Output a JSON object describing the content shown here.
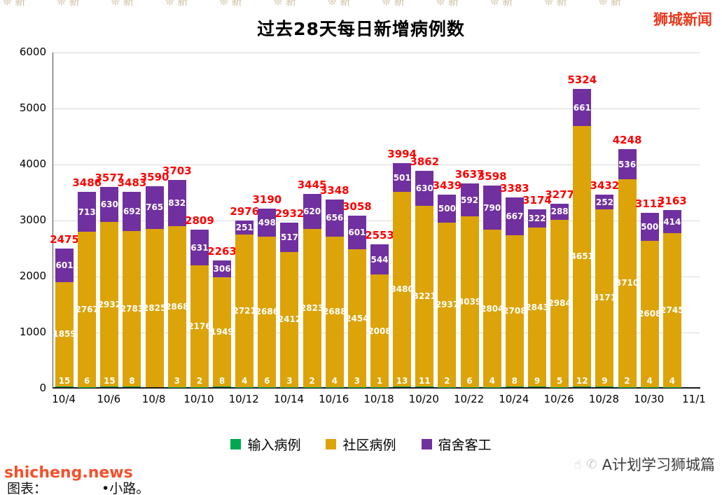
{
  "page": {
    "top_right_watermark": "狮城新闻",
    "top_pattern": "❊ 新",
    "bottom_left_watermark": "shicheng.news",
    "caption_prefix": "图表：",
    "caption_suffix": "•小路。",
    "bottom_right_credit": "A计划学习狮城篇",
    "hand_icon": "☝",
    "phone_icon": "✆"
  },
  "chart_data": {
    "type": "bar",
    "stacked": true,
    "title": "过去28天每日新增病例数",
    "xlabel": "",
    "ylabel": "",
    "ylim": [
      0,
      6000
    ],
    "y_ticks": [
      0,
      1000,
      2000,
      3000,
      4000,
      5000,
      6000
    ],
    "grid": true,
    "legend_position": "bottom",
    "x_tick_labels": [
      "10/4",
      "10/6",
      "10/8",
      "10/10",
      "10/12",
      "10/14",
      "10/16",
      "10/18",
      "10/20",
      "10/22",
      "10/24",
      "10/26",
      "10/28",
      "10/30",
      "11/1"
    ],
    "series": [
      {
        "key": "imported",
        "name": "输入病例",
        "color": "#00A84F"
      },
      {
        "key": "community",
        "name": "社区病例",
        "color": "#DCA408"
      },
      {
        "key": "dorm",
        "name": "宿舍客工",
        "color": "#7030A0"
      }
    ],
    "label_colors": {
      "total": "#FF0000",
      "inside": "#FFFFFF"
    },
    "bars": [
      {
        "imported": 15,
        "community": 1859,
        "dorm": 601,
        "total": 2475
      },
      {
        "imported": 6,
        "community": 2767,
        "dorm": 713,
        "total": 3486
      },
      {
        "imported": 15,
        "community": 2932,
        "dorm": 630,
        "total": 3577
      },
      {
        "imported": 8,
        "community": 2783,
        "dorm": 692,
        "total": 3483
      },
      {
        "imported": 0,
        "community": 2825,
        "dorm": 765,
        "total": 3590
      },
      {
        "imported": 3,
        "community": 2868,
        "dorm": 832,
        "total": 3703
      },
      {
        "imported": 2,
        "community": 2176,
        "dorm": 631,
        "total": 2809
      },
      {
        "imported": 8,
        "community": 1949,
        "dorm": 306,
        "total": 2263
      },
      {
        "imported": 4,
        "community": 2721,
        "dorm": 251,
        "total": 2976
      },
      {
        "imported": 6,
        "community": 2686,
        "dorm": 498,
        "total": 3190
      },
      {
        "imported": 3,
        "community": 2412,
        "dorm": 517,
        "total": 2932
      },
      {
        "imported": 2,
        "community": 2823,
        "dorm": 620,
        "total": 3445
      },
      {
        "imported": 4,
        "community": 2688,
        "dorm": 656,
        "total": 3348
      },
      {
        "imported": 3,
        "community": 2454,
        "dorm": 601,
        "total": 3058
      },
      {
        "imported": 1,
        "community": 2008,
        "dorm": 544,
        "total": 2553
      },
      {
        "imported": 13,
        "community": 3480,
        "dorm": 501,
        "total": 3994
      },
      {
        "imported": 11,
        "community": 3221,
        "dorm": 630,
        "total": 3862
      },
      {
        "imported": 2,
        "community": 2937,
        "dorm": 500,
        "total": 3439
      },
      {
        "imported": 6,
        "community": 3039,
        "dorm": 592,
        "total": 3637
      },
      {
        "imported": 4,
        "community": 2804,
        "dorm": 790,
        "total": 3598
      },
      {
        "imported": 8,
        "community": 2708,
        "dorm": 667,
        "total": 3383
      },
      {
        "imported": 9,
        "community": 2843,
        "dorm": 322,
        "total": 3174
      },
      {
        "imported": 5,
        "community": 2984,
        "dorm": 288,
        "total": 3277
      },
      {
        "imported": 12,
        "community": 4651,
        "dorm": 661,
        "total": 5324
      },
      {
        "imported": 9,
        "community": 3171,
        "dorm": 252,
        "total": 3432
      },
      {
        "imported": 2,
        "community": 3710,
        "dorm": 536,
        "total": 4248
      },
      {
        "imported": 4,
        "community": 2608,
        "dorm": 500,
        "total": 3112
      },
      {
        "imported": 4,
        "community": 2745,
        "dorm": 414,
        "total": 3163
      }
    ]
  }
}
